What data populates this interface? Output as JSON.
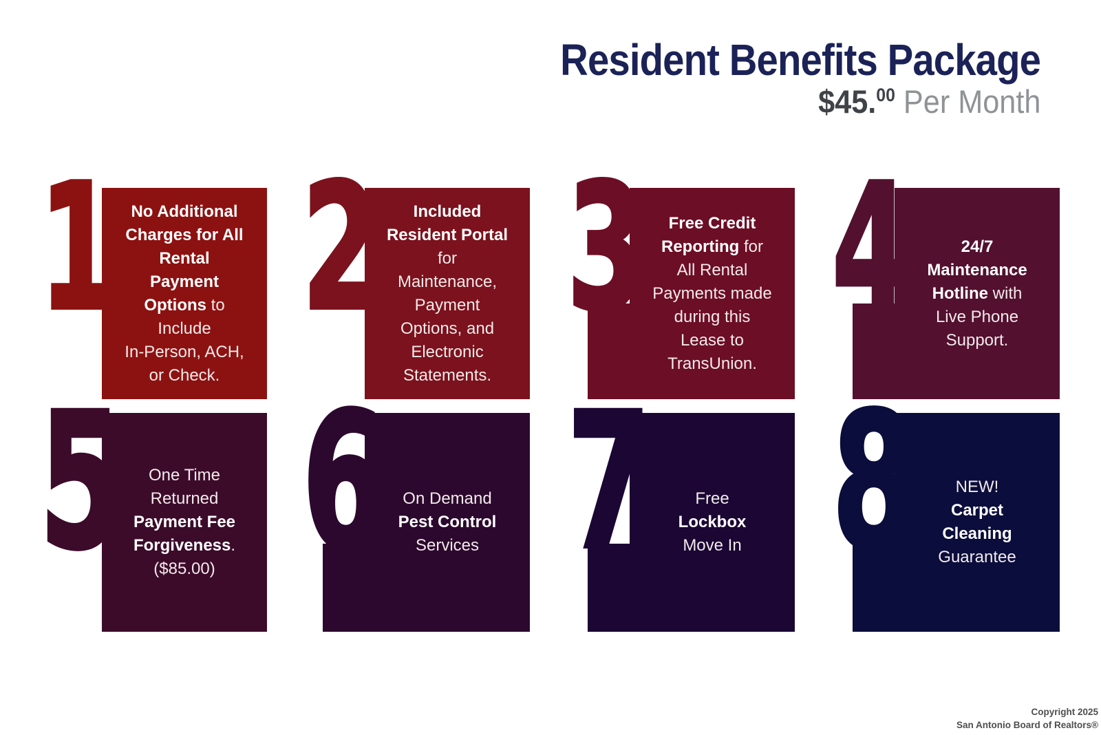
{
  "header": {
    "title": "Resident Benefits Package",
    "price_dollars": "$45.",
    "price_cents": "00",
    "price_suffix": " Per Month",
    "title_color": "#1b2257",
    "price_color": "#3f4347",
    "price_suffix_color": "#8f9396"
  },
  "tiles": [
    {
      "number": "1",
      "color": "#8c1211",
      "pedestal": false,
      "lines": [
        [
          {
            "t": "No Additional",
            "b": true
          }
        ],
        [
          {
            "t": "Charges for All",
            "b": true
          }
        ],
        [
          {
            "t": "Rental",
            "b": true
          }
        ],
        [
          {
            "t": "Payment",
            "b": true
          }
        ],
        [
          {
            "t": "Options",
            "b": true
          },
          {
            "t": " to",
            "b": false
          }
        ],
        [
          {
            "t": "Include",
            "b": false
          }
        ],
        [
          {
            "t": "In-Person, ACH,",
            "b": false
          }
        ],
        [
          {
            "t": "or Check.",
            "b": false
          }
        ]
      ]
    },
    {
      "number": "2",
      "color": "#7b121d",
      "pedestal": false,
      "lines": [
        [
          {
            "t": "Included",
            "b": true
          }
        ],
        [
          {
            "t": "Resident Portal",
            "b": true
          }
        ],
        [
          {
            "t": "for",
            "b": false
          }
        ],
        [
          {
            "t": "Maintenance,",
            "b": false
          }
        ],
        [
          {
            "t": "Payment",
            "b": false
          }
        ],
        [
          {
            "t": "Options, and",
            "b": false
          }
        ],
        [
          {
            "t": "Electronic",
            "b": false
          }
        ],
        [
          {
            "t": "Statements.",
            "b": false
          }
        ]
      ]
    },
    {
      "number": "3",
      "color": "#6c0e25",
      "pedestal": true,
      "lines": [
        [
          {
            "t": "Free Credit",
            "b": true
          }
        ],
        [
          {
            "t": "Reporting",
            "b": true
          },
          {
            "t": " for",
            "b": false
          }
        ],
        [
          {
            "t": "All Rental",
            "b": false
          }
        ],
        [
          {
            "t": "Payments made",
            "b": false
          }
        ],
        [
          {
            "t": "during this",
            "b": false
          }
        ],
        [
          {
            "t": "Lease to",
            "b": false
          }
        ],
        [
          {
            "t": "TransUnion.",
            "b": false
          }
        ]
      ]
    },
    {
      "number": "4",
      "color": "#53102f",
      "pedestal": true,
      "lines": [
        [
          {
            "t": "24/7",
            "b": true
          }
        ],
        [
          {
            "t": "Maintenance",
            "b": true
          }
        ],
        [
          {
            "t": "Hotline",
            "b": true
          },
          {
            "t": " with",
            "b": false
          }
        ],
        [
          {
            "t": "Live Phone",
            "b": false
          }
        ],
        [
          {
            "t": "Support.",
            "b": false
          }
        ]
      ]
    },
    {
      "number": "5",
      "color": "#3c0b2a",
      "pedestal": false,
      "lines": [
        [
          {
            "t": "One Time",
            "b": false
          }
        ],
        [
          {
            "t": "Returned",
            "b": false
          }
        ],
        [
          {
            "t": "Payment Fee",
            "b": true
          }
        ],
        [
          {
            "t": "Forgiveness",
            "b": true
          },
          {
            "t": ".",
            "b": false
          }
        ],
        [
          {
            "t": "($85.00)",
            "b": false
          }
        ]
      ]
    },
    {
      "number": "6",
      "color": "#2c082e",
      "pedestal": true,
      "lines": [
        [
          {
            "t": "On Demand",
            "b": false
          }
        ],
        [
          {
            "t": "Pest Control",
            "b": true
          }
        ],
        [
          {
            "t": "Services",
            "b": false
          }
        ]
      ]
    },
    {
      "number": "7",
      "color": "#1b0634",
      "pedestal": true,
      "lines": [
        [
          {
            "t": "Free",
            "b": false
          }
        ],
        [
          {
            "t": "Lockbox",
            "b": true
          }
        ],
        [
          {
            "t": "Move In",
            "b": false
          }
        ]
      ]
    },
    {
      "number": "8",
      "color": "#0b0d3c",
      "pedestal": true,
      "lines": [
        [
          {
            "t": "NEW!",
            "b": false
          }
        ],
        [
          {
            "t": "Carpet",
            "b": true
          }
        ],
        [
          {
            "t": "Cleaning",
            "b": true
          }
        ],
        [
          {
            "t": "Guarantee",
            "b": false
          }
        ]
      ]
    }
  ],
  "footer": {
    "line1": "Copyright 2025",
    "line2": "San Antonio Board of Realtors®"
  }
}
